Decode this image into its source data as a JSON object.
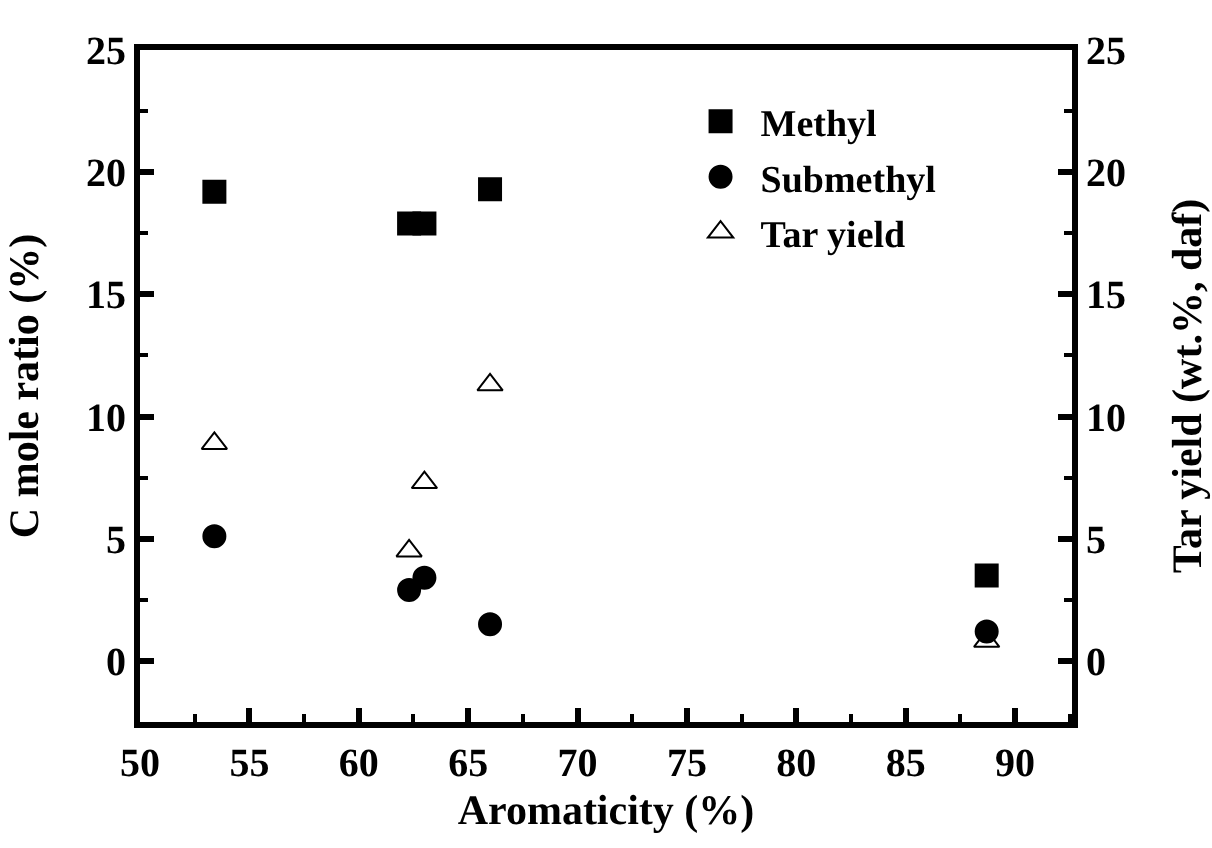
{
  "chart_data": {
    "type": "scatter",
    "xlabel": "Aromaticity (%)",
    "ylabel": "C mole ratio (%)",
    "y2label": "Tar yield (wt.%, daf)",
    "xlim": [
      50,
      92.6
    ],
    "xticks": [
      50,
      55,
      60,
      65,
      70,
      75,
      80,
      85,
      90
    ],
    "ylim": [
      -2.5,
      25
    ],
    "yticks": [
      0,
      5,
      10,
      15,
      20,
      25
    ],
    "y2lim": [
      -2.5,
      25
    ],
    "y2ticks": [
      0,
      5,
      10,
      15,
      20,
      25
    ],
    "grid": false,
    "legend": "top right",
    "series": [
      {
        "name": "Methyl",
        "color": "#000000",
        "marker": "square",
        "x": [
          53.4,
          62.3,
          63.0,
          66.0,
          88.7
        ],
        "values": [
          19.2,
          17.9,
          17.9,
          19.3,
          3.5
        ]
      },
      {
        "name": "Submethyl",
        "color": "#000000",
        "marker": "circle",
        "x": [
          53.4,
          62.3,
          63.0,
          66.0,
          88.7
        ],
        "values": [
          5.1,
          2.9,
          3.4,
          1.5,
          1.2
        ]
      },
      {
        "name": "Tar yield",
        "color": "#000000",
        "marker": "triangle",
        "axis": "y2",
        "x": [
          53.4,
          62.3,
          63.0,
          66.0,
          88.7
        ],
        "values": [
          8.9,
          4.5,
          7.3,
          11.3,
          0.8
        ]
      }
    ]
  }
}
